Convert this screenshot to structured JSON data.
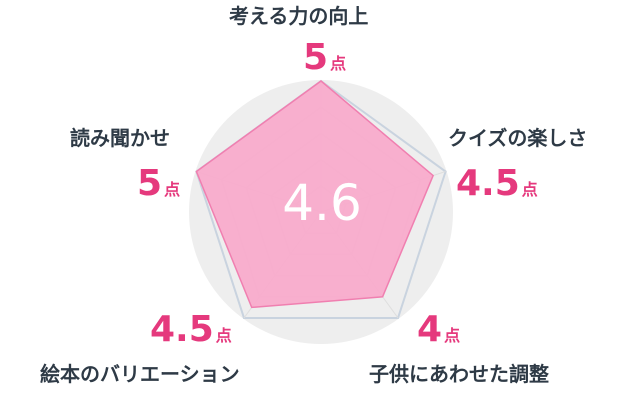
{
  "chart_data": {
    "type": "radar",
    "overall_score": "4.6",
    "max": 5,
    "unit": "点",
    "axes": [
      {
        "label": "考える力の向上",
        "value": 5,
        "display": "5"
      },
      {
        "label": "クイズの楽しさ",
        "value": 4.5,
        "display": "4.5"
      },
      {
        "label": "子供にあわせた調整",
        "value": 4,
        "display": "4"
      },
      {
        "label": "絵本のバリエーション",
        "value": 4.5,
        "display": "4.5"
      },
      {
        "label": "読み聞かせ",
        "value": 5,
        "display": "5"
      }
    ],
    "colors": {
      "fill": "#f9a9cb",
      "stroke": "#f07fb0",
      "grid_background": "#eeeeee",
      "grid_line": "#dedede",
      "outer_line": "#c9d3df",
      "label_text": "#2e3a46",
      "score_text": "#e5397d"
    }
  }
}
